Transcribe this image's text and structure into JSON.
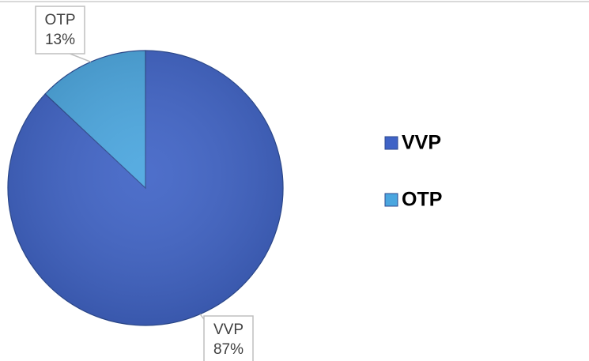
{
  "chart_data": {
    "type": "pie",
    "categories": [
      "VVP",
      "OTP"
    ],
    "values": [
      87,
      13
    ],
    "value_labels": [
      "87%",
      "13%"
    ],
    "colors": [
      "#3f63c6",
      "#4aa6df"
    ],
    "legend": "right"
  }
}
